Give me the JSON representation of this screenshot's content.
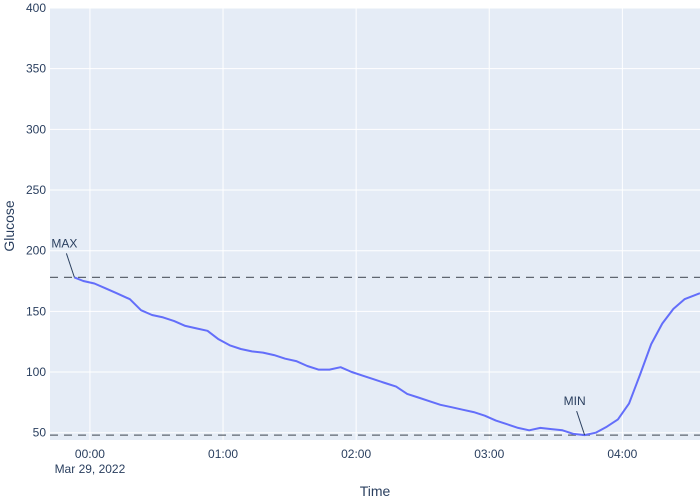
{
  "chart_data": {
    "type": "line",
    "title": "",
    "xlabel": "Time",
    "ylabel": "Glucose",
    "ylim": [
      44,
      400
    ],
    "xlim_minutes": [
      -18,
      275
    ],
    "grid": true,
    "y_ticks": [
      50,
      100,
      150,
      200,
      250,
      300,
      350,
      400
    ],
    "x_ticks": [
      {
        "minute": 0,
        "label": "00:00",
        "sublabel": "Mar 29, 2022"
      },
      {
        "minute": 60,
        "label": "01:00",
        "sublabel": ""
      },
      {
        "minute": 120,
        "label": "02:00",
        "sublabel": ""
      },
      {
        "minute": 180,
        "label": "03:00",
        "sublabel": ""
      },
      {
        "minute": 240,
        "label": "04:00",
        "sublabel": ""
      }
    ],
    "series": [
      {
        "color": "#636efa",
        "x_minutes": [
          -7,
          -3,
          2,
          7,
          12,
          18,
          23,
          28,
          33,
          38,
          43,
          48,
          53,
          58,
          63,
          68,
          73,
          78,
          83,
          88,
          93,
          98,
          103,
          108,
          113,
          118,
          123,
          128,
          133,
          138,
          143,
          148,
          153,
          158,
          163,
          168,
          173,
          178,
          183,
          188,
          193,
          198,
          203,
          208,
          213,
          218,
          223,
          228,
          233,
          238,
          243,
          248,
          253,
          258,
          263,
          268,
          275
        ],
        "values": [
          178,
          175,
          173,
          169,
          165,
          160,
          151,
          147,
          145,
          142,
          138,
          136,
          134,
          127,
          122,
          119,
          117,
          116,
          114,
          111,
          109,
          105,
          102,
          102,
          104,
          100,
          97,
          94,
          91,
          88,
          82,
          79,
          76,
          73,
          71,
          69,
          67,
          64,
          60,
          57,
          54,
          52,
          54,
          53,
          52,
          49,
          48,
          50,
          55,
          61,
          74,
          98,
          123,
          140,
          152,
          160,
          165
        ]
      }
    ],
    "hlines": [
      {
        "value": 178,
        "color": "#5f6670",
        "dash": "dashed"
      },
      {
        "value": 48,
        "color": "#5f6670",
        "dash": "dashed"
      }
    ],
    "annotations": [
      {
        "text": "MAX",
        "x_minute": -7,
        "y": 178
      },
      {
        "text": "MIN",
        "x_minute": 223,
        "y": 48
      }
    ],
    "colors": {
      "plot_bg": "#e5ecf6",
      "grid": "#ffffff",
      "text": "#2a3f5f",
      "line": "#636efa"
    }
  }
}
